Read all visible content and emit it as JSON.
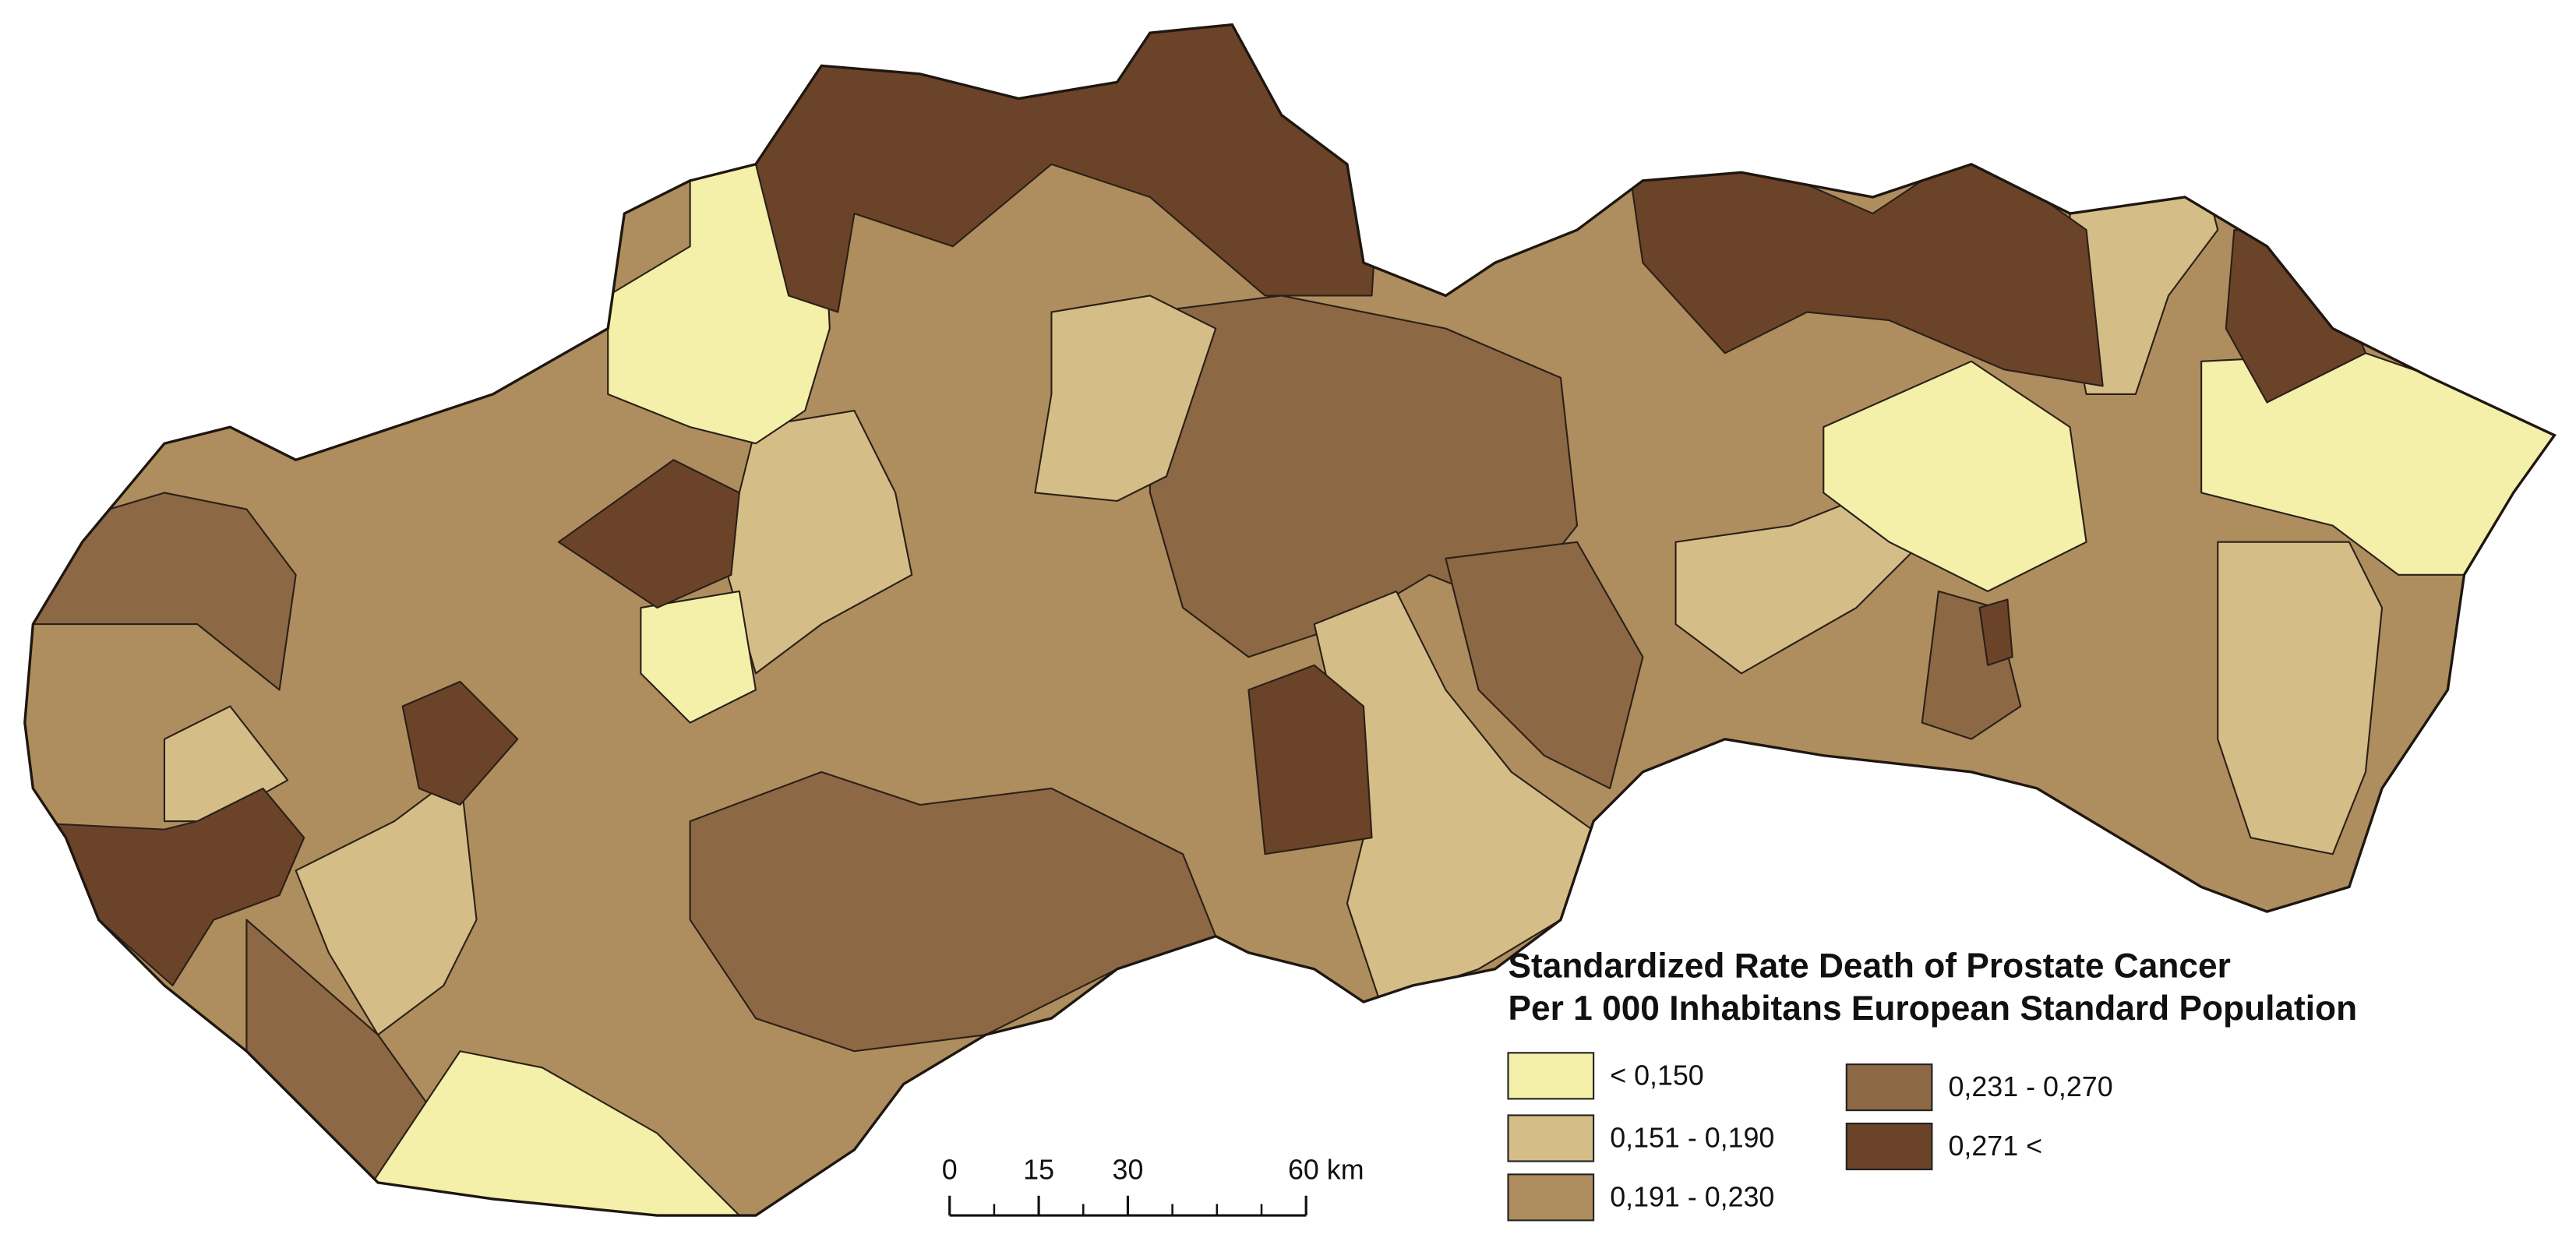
{
  "legend": {
    "title": [
      "Standardized Rate Death of Prostate Cancer",
      "Per 1 000 Inhabitans European Standard Population"
    ],
    "items": [
      {
        "label": "< 0,150",
        "color": "#f4efa9"
      },
      {
        "label": "0,151 - 0,190",
        "color": "#d5bd88"
      },
      {
        "label": "0,191 - 0,230",
        "color": "#ae8e5e"
      },
      {
        "label": "0,231 - 0,270",
        "color": "#8c6844"
      },
      {
        "label": "0,271 <",
        "color": "#6b4329"
      }
    ]
  },
  "scale_bar": {
    "ticks": [
      0,
      15,
      30,
      {
        "value": 60,
        "label": "60 km"
      }
    ]
  }
}
